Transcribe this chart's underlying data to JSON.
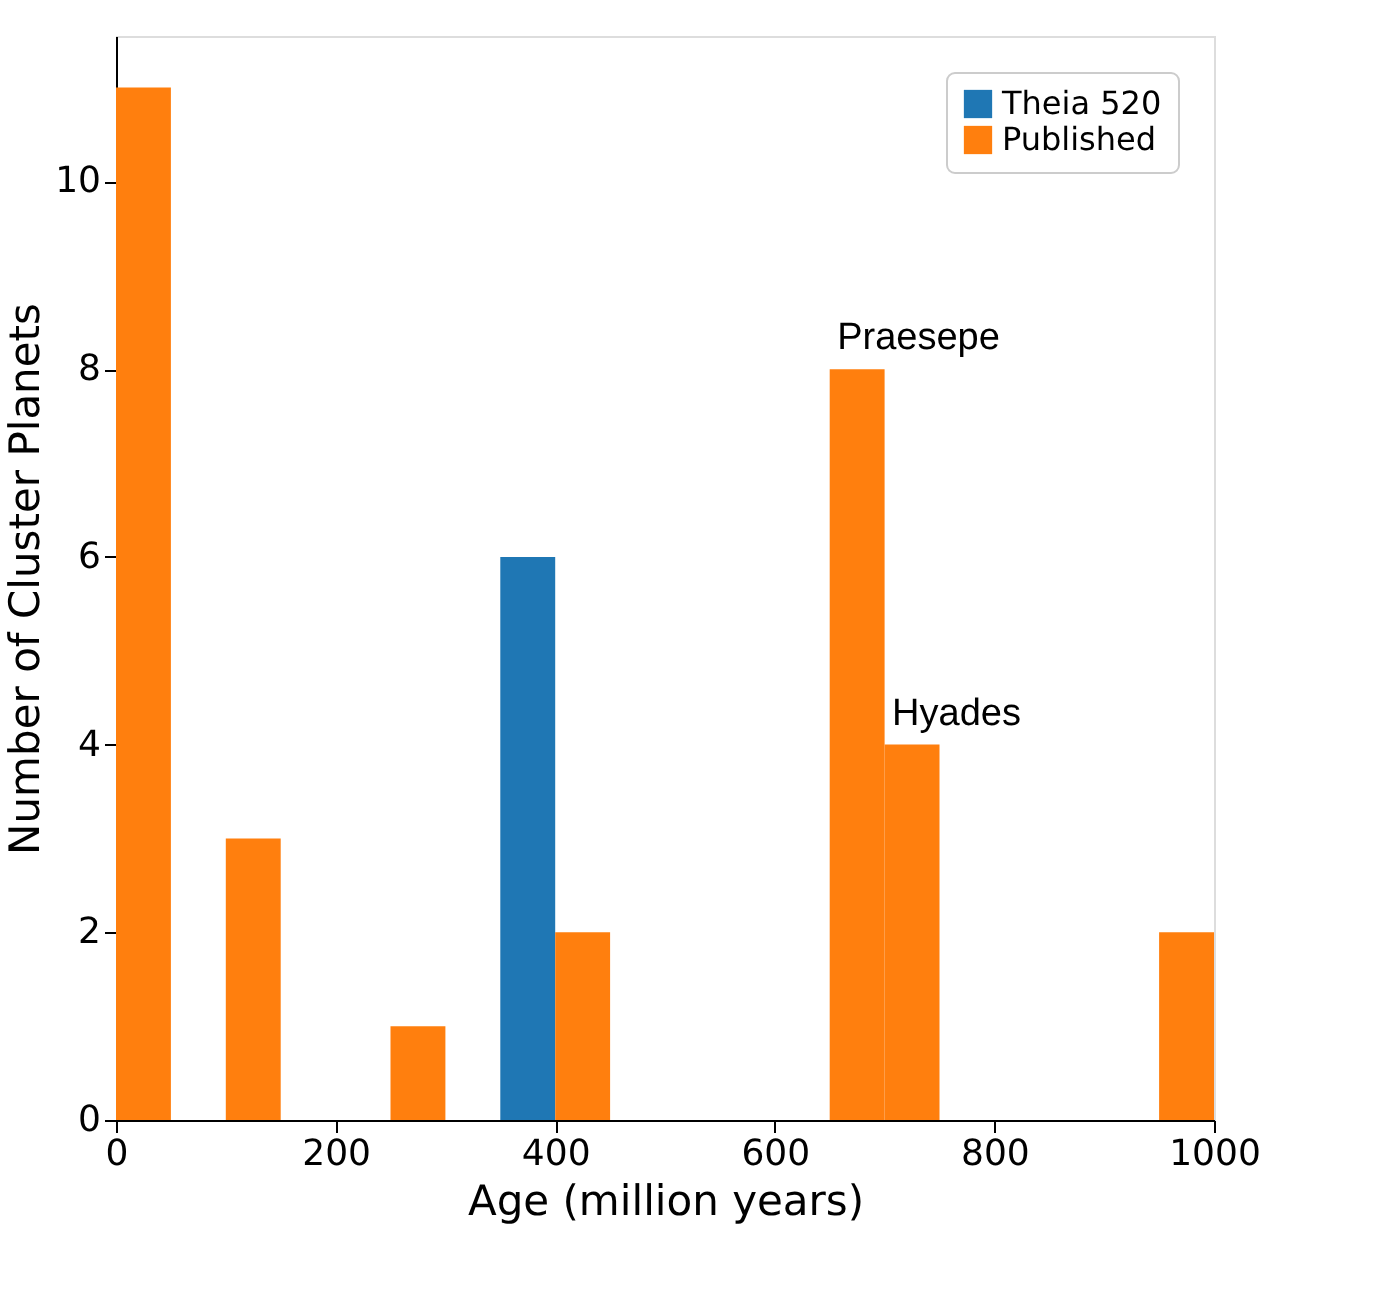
{
  "chart_data": {
    "type": "histogram",
    "xlabel": "Age (million years)",
    "ylabel": "Number of Cluster Planets",
    "bins": [
      0,
      50,
      100,
      150,
      200,
      250,
      300,
      350,
      400,
      450,
      500,
      550,
      600,
      650,
      700,
      750,
      800,
      850,
      900,
      950,
      1000
    ],
    "series": [
      {
        "name": "Theia 520",
        "color": "#1f77b4",
        "values": [
          0,
          0,
          0,
          0,
          0,
          0,
          0,
          6,
          0,
          0,
          0,
          0,
          0,
          0,
          0,
          0,
          0,
          0,
          0,
          0
        ]
      },
      {
        "name": "Published",
        "color": "#ff7f0e",
        "values": [
          11,
          0,
          3,
          0,
          0,
          1,
          0,
          0,
          2,
          0,
          0,
          0,
          0,
          8,
          4,
          0,
          0,
          0,
          0,
          2
        ]
      }
    ],
    "xlim": [
      0,
      1000
    ],
    "xticks": [
      0,
      200,
      400,
      600,
      800,
      1000
    ],
    "ylim": [
      0,
      11.55
    ],
    "yticks": [
      0,
      2,
      4,
      6,
      8,
      10
    ],
    "annotations": [
      {
        "text": "Praesepe",
        "x": 675,
        "y": 8
      },
      {
        "text": "Hyades",
        "x": 725,
        "y": 4
      }
    ],
    "legend": "top right",
    "grid": false
  }
}
